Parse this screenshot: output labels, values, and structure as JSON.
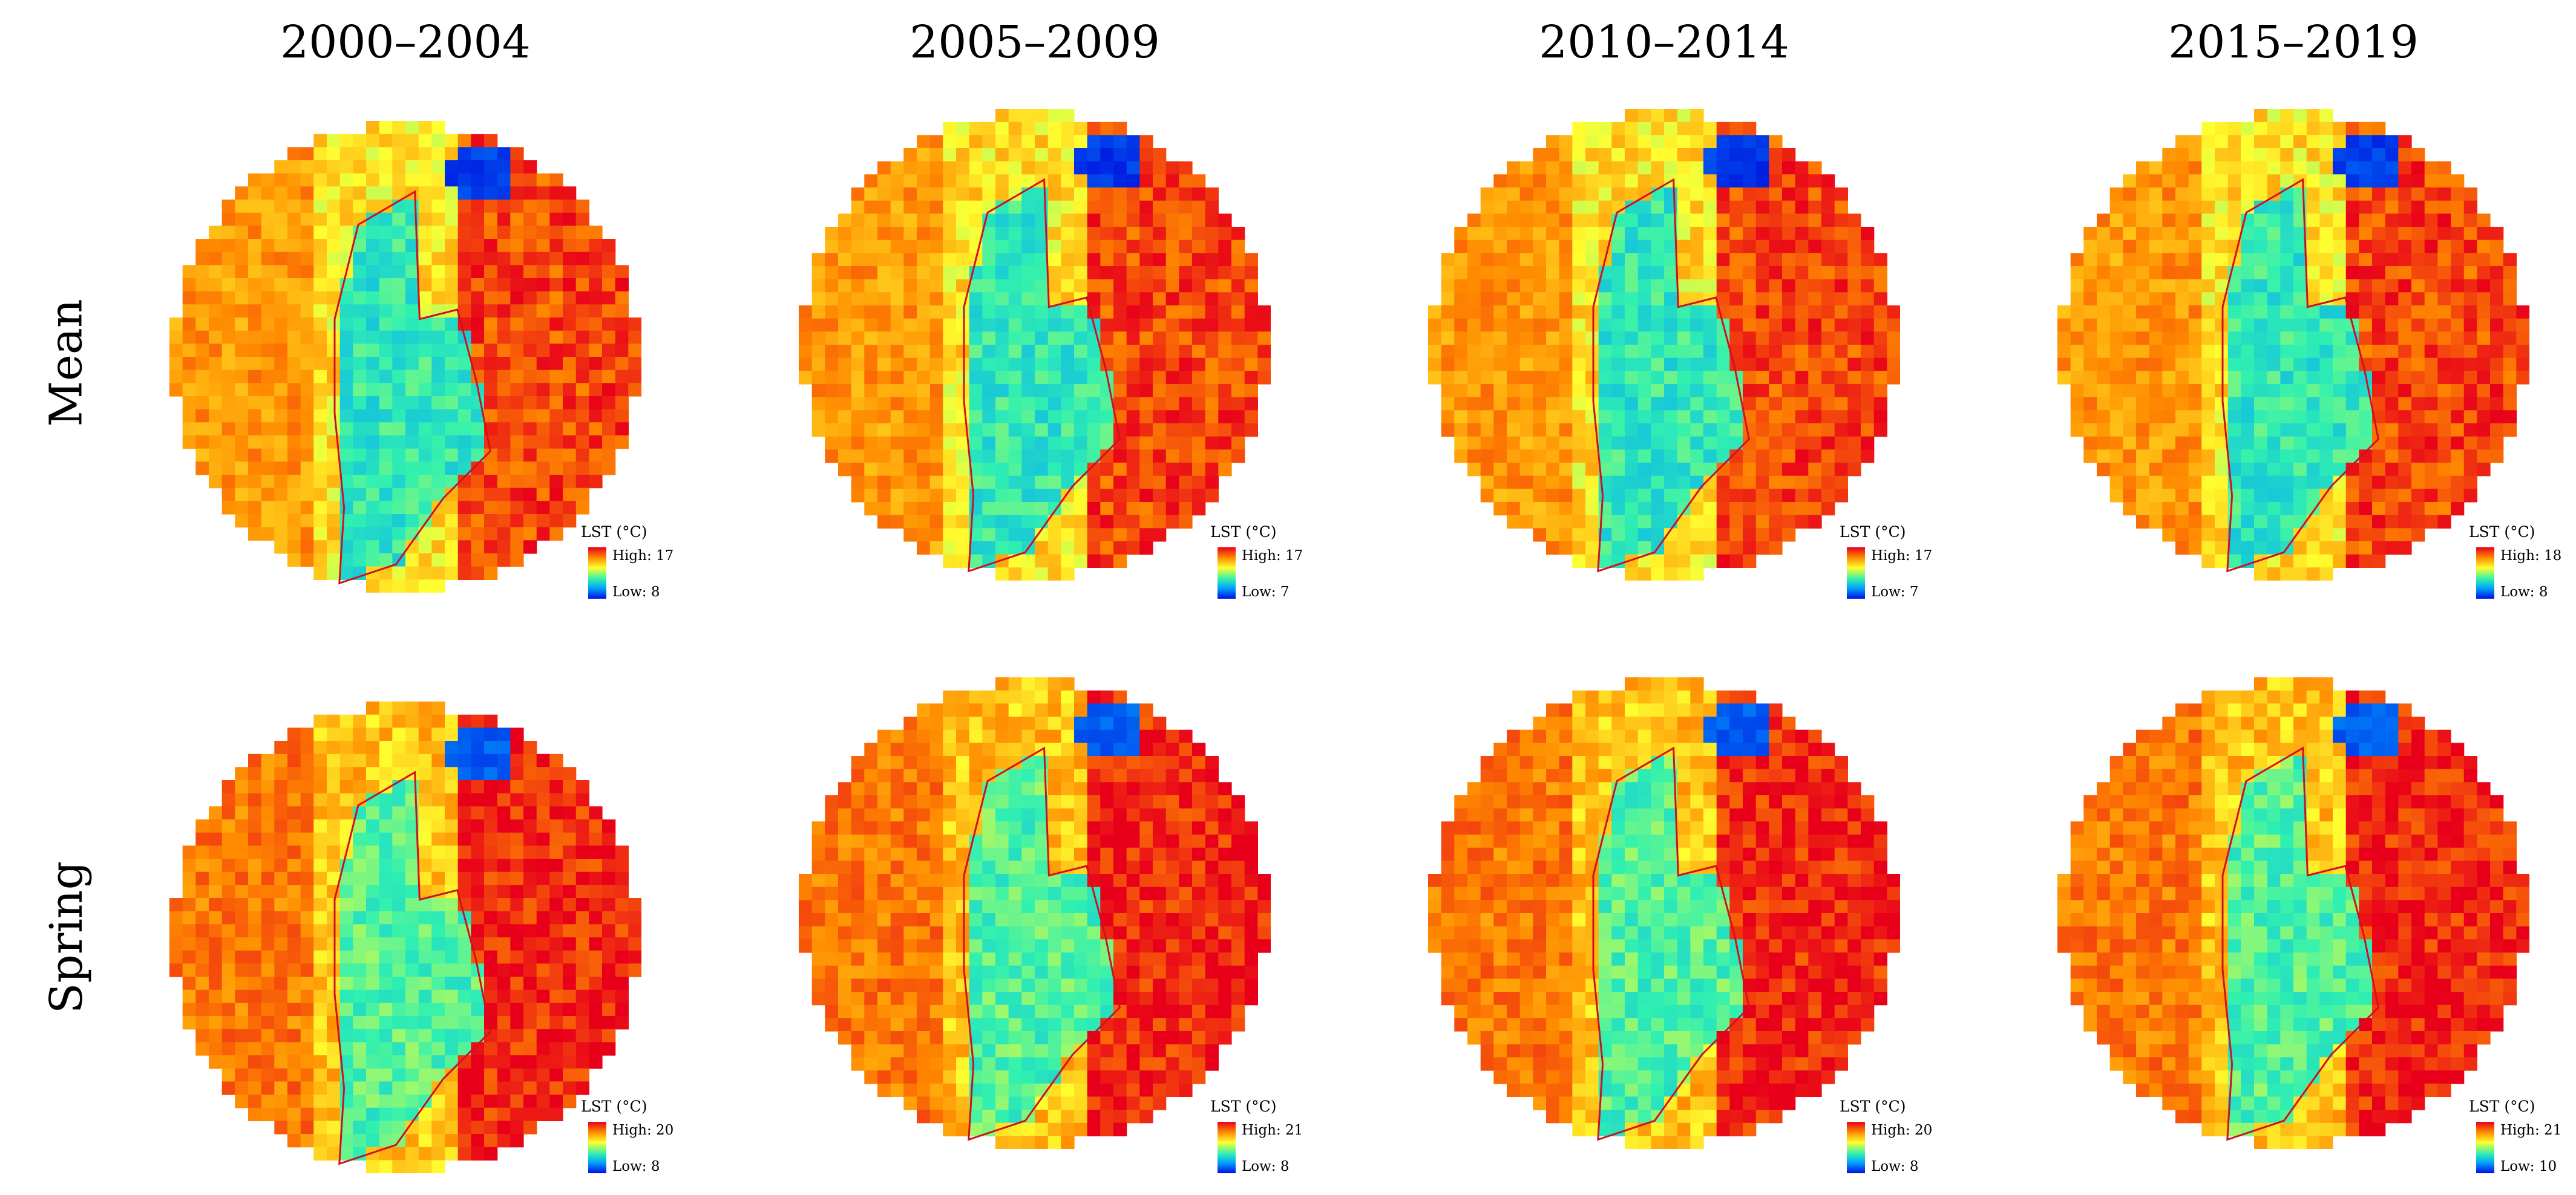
{
  "columns": [
    "2000–2004",
    "2005–2009",
    "2010–2014",
    "2015–2019"
  ],
  "rows": [
    "Mean",
    "Spring"
  ],
  "legend": {
    "title": "LST (°C)",
    "colors": [
      "#e8001a",
      "#ff8a00",
      "#ffff30",
      "#30f0b0",
      "#00a0ff",
      "#0010e0"
    ],
    "panels": [
      {
        "high": "High: 17",
        "low": "Low: 8"
      },
      {
        "high": "High: 17",
        "low": "Low: 7"
      },
      {
        "high": "High: 17",
        "low": "Low: 7"
      },
      {
        "high": "High: 18",
        "low": "Low: 8"
      },
      {
        "high": "High: 20",
        "low": "Low: 8"
      },
      {
        "high": "High: 21",
        "low": "Low: 8"
      },
      {
        "high": "High: 20",
        "low": "Low: 8"
      },
      {
        "high": "High: 21",
        "low": "Low: 10"
      }
    ]
  },
  "boundary_color": "#d01020"
}
